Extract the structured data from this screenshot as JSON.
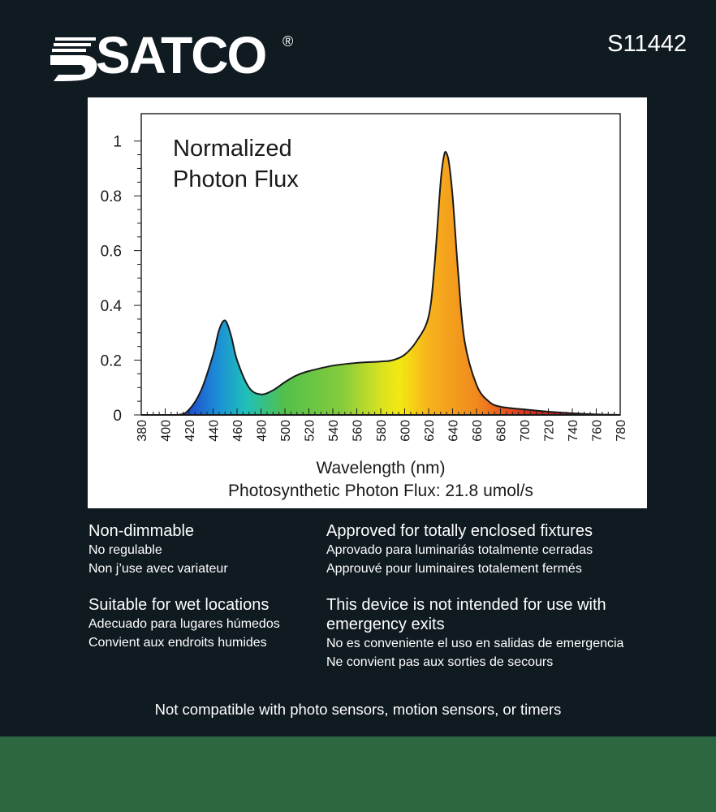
{
  "brand": {
    "name": "SATCO",
    "registered": "®",
    "model": "S11442"
  },
  "chart_data": {
    "type": "area",
    "title": "Normalized Photon Flux",
    "title_lines": [
      "Normalized",
      "Photon Flux"
    ],
    "xlabel": "Wavelength (nm)",
    "ylabel": "",
    "subtitle": "Photosynthetic Photon Flux: 21.8 umol/s",
    "xlim": [
      380,
      780
    ],
    "ylim": [
      0,
      1.1
    ],
    "x_ticks": [
      "380",
      "400",
      "420",
      "440",
      "460",
      "480",
      "500",
      "520",
      "540",
      "560",
      "580",
      "600",
      "620",
      "640",
      "660",
      "680",
      "700",
      "720",
      "740",
      "760",
      "780"
    ],
    "y_ticks": [
      "0",
      "0.2",
      "0.4",
      "0.6",
      "0.8",
      "1"
    ],
    "series": [
      {
        "x": [
          380,
          410,
          420,
          430,
          440,
          445,
          450,
          455,
          460,
          470,
          480,
          490,
          500,
          510,
          520,
          540,
          560,
          580,
          590,
          600,
          610,
          620,
          625,
          630,
          633,
          635,
          637,
          640,
          645,
          650,
          660,
          670,
          680,
          700,
          720,
          740,
          760,
          780
        ],
        "values": [
          0,
          0,
          0.02,
          0.09,
          0.22,
          0.31,
          0.345,
          0.29,
          0.2,
          0.1,
          0.075,
          0.09,
          0.12,
          0.145,
          0.16,
          0.18,
          0.19,
          0.195,
          0.2,
          0.22,
          0.27,
          0.36,
          0.55,
          0.85,
          0.95,
          0.955,
          0.92,
          0.8,
          0.5,
          0.27,
          0.11,
          0.05,
          0.03,
          0.02,
          0.012,
          0.006,
          0.002,
          0
        ]
      }
    ],
    "grid": false,
    "legend": "none"
  },
  "features": {
    "left": [
      {
        "heading": "Non-dimmable",
        "lines": [
          "No regulable",
          "Non j’use avec variateur"
        ]
      },
      {
        "heading": "Suitable for wet locations",
        "lines": [
          "Adecuado para lugares húmedos",
          "Convient aux endroits humides"
        ]
      }
    ],
    "right": [
      {
        "heading": "Approved for totally enclosed fixtures",
        "lines": [
          "Aprovado para luminariás totalmente cerradas",
          "Approuvé pour luminaires totalement fermés"
        ]
      },
      {
        "heading_lines": [
          "This device is not intended for use with",
          "emergency exits"
        ],
        "lines": [
          "No es conveniente el uso en salidas de emergencia",
          "Ne convient pas aux sorties de secours"
        ]
      }
    ]
  },
  "footer_note": "Not compatible with photo sensors, motion sensors, or timers"
}
